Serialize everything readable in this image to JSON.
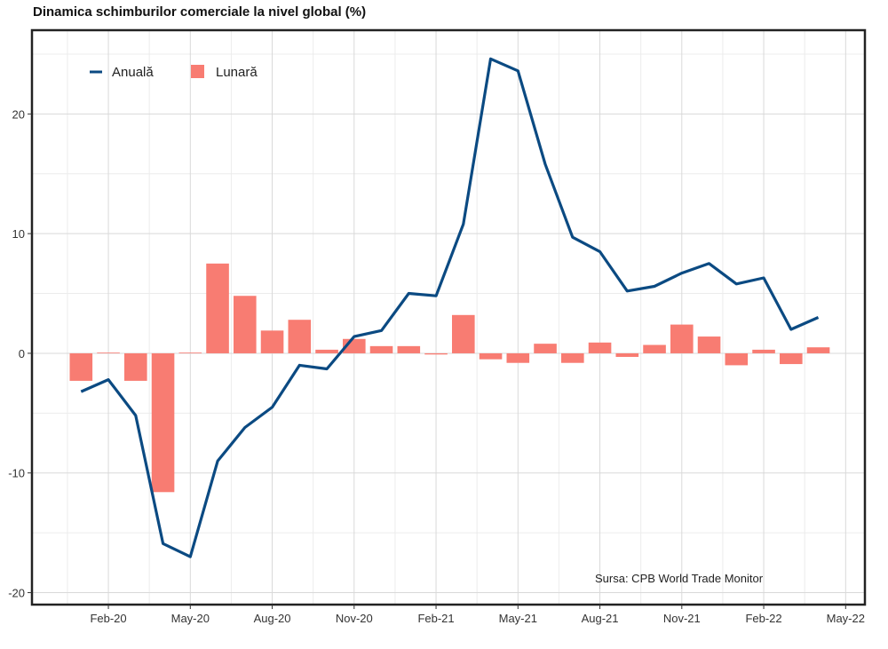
{
  "chart_data": {
    "type": "bar+line",
    "title": "Dinamica schimburilor comerciale la nivel global (%)",
    "source": "Sursa: CPB World Trade Monitor",
    "ylim": [
      -21,
      27
    ],
    "yticks": [
      -20,
      -10,
      0,
      10,
      20
    ],
    "ytick_labels": [
      "-20",
      "-10",
      "0",
      "10",
      "20"
    ],
    "xticks": [
      "Feb-20",
      "May-20",
      "Aug-20",
      "Nov-20",
      "Feb-21",
      "May-21",
      "Aug-21",
      "Nov-21",
      "Feb-22",
      "May-22"
    ],
    "grid": true,
    "legend_position": "top-left",
    "months": [
      "Jan-20",
      "Feb-20",
      "Mar-20",
      "Apr-20",
      "May-20",
      "Jun-20",
      "Jul-20",
      "Aug-20",
      "Sep-20",
      "Oct-20",
      "Nov-20",
      "Dec-20",
      "Jan-21",
      "Feb-21",
      "Mar-21",
      "Apr-21",
      "May-21",
      "Jun-21",
      "Jul-21",
      "Aug-21",
      "Sep-21",
      "Oct-21",
      "Nov-21",
      "Dec-21",
      "Jan-22",
      "Feb-22",
      "Mar-22",
      "Apr-22"
    ],
    "series": [
      {
        "name": "Anuală",
        "kind": "line",
        "color": "#0b4a82",
        "values": [
          -3.2,
          -2.2,
          -5.2,
          -15.9,
          -17.0,
          -9.0,
          -6.2,
          -4.5,
          -1.0,
          -1.3,
          1.4,
          1.9,
          5.0,
          4.8,
          10.8,
          24.6,
          23.6,
          15.8,
          9.7,
          8.5,
          5.2,
          5.6,
          6.7,
          7.5,
          5.8,
          6.3,
          2.0,
          3.0
        ]
      },
      {
        "name": "Lunară",
        "kind": "bar",
        "color": "#f87c72",
        "values": [
          -2.3,
          0.0,
          -2.3,
          -11.6,
          0.0,
          7.5,
          4.8,
          1.9,
          2.8,
          0.3,
          1.2,
          0.6,
          0.6,
          -0.1,
          3.2,
          -0.5,
          -0.8,
          0.8,
          -0.8,
          0.9,
          -0.3,
          0.7,
          2.4,
          1.4,
          -1.0,
          0.3,
          -0.9,
          0.5
        ]
      }
    ]
  }
}
